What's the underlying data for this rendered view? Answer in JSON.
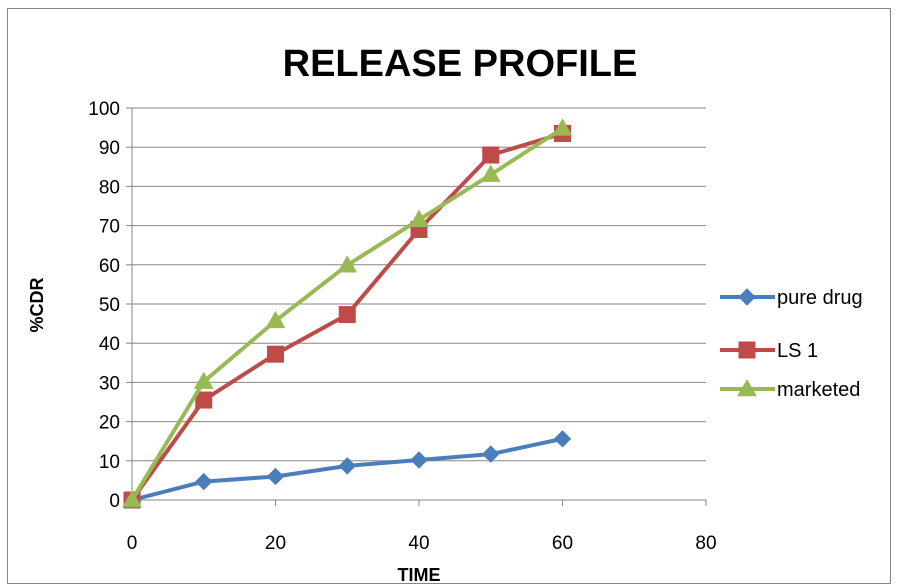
{
  "chart_data": {
    "type": "line",
    "title": "RELEASE PROFILE",
    "xlabel": "TIME",
    "ylabel": "%CDR",
    "xlim": [
      0,
      80
    ],
    "ylim": [
      0,
      100
    ],
    "x_ticks": [
      0,
      20,
      40,
      60,
      80
    ],
    "y_ticks": [
      0,
      10,
      20,
      30,
      40,
      50,
      60,
      70,
      80,
      90,
      100
    ],
    "grid": "horizontal",
    "legend_position": "right",
    "series": [
      {
        "name": "pure drug",
        "color": "#4a7ebb",
        "marker": "diamond",
        "x": [
          0,
          10,
          20,
          30,
          40,
          50,
          60
        ],
        "y": [
          0,
          4.7,
          6.0,
          8.7,
          10.2,
          11.7,
          15.6
        ]
      },
      {
        "name": "LS 1",
        "color": "#be4b48",
        "marker": "square",
        "x": [
          0,
          10,
          20,
          30,
          40,
          50,
          60
        ],
        "y": [
          0,
          25.5,
          37.2,
          47.3,
          69.0,
          88.0,
          93.5
        ]
      },
      {
        "name": "marketed",
        "color": "#98b954",
        "marker": "triangle",
        "x": [
          0,
          10,
          20,
          30,
          40,
          50,
          60
        ],
        "y": [
          0,
          30.2,
          45.7,
          59.9,
          71.5,
          83.0,
          94.8
        ]
      }
    ]
  }
}
